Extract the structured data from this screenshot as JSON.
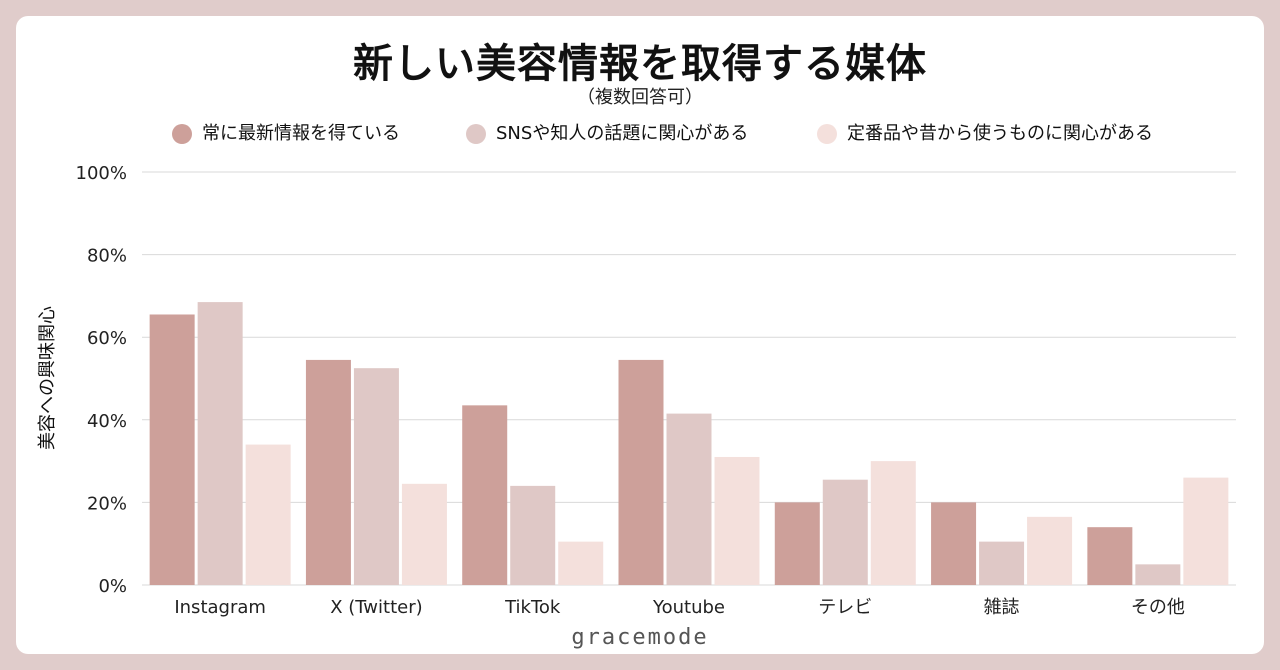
{
  "chart_data": {
    "type": "bar",
    "title": "新しい美容情報を取得する媒体",
    "subtitle": "（複数回答可）",
    "ylabel": "美容への興味関心",
    "xlabel": "",
    "ylim": [
      0,
      100
    ],
    "y_ticks": [
      "0%",
      "20%",
      "40%",
      "60%",
      "80%",
      "100%"
    ],
    "grid": true,
    "legend_position": "top",
    "categories": [
      "Instagram",
      "X (Twitter)",
      "TikTok",
      "Youtube",
      "テレビ",
      "雑誌",
      "その他"
    ],
    "series": [
      {
        "name": "常に最新情報を得ている",
        "color": "#cda09a",
        "values": [
          65.5,
          54.5,
          43.5,
          54.5,
          20.0,
          20.0,
          14.0
        ]
      },
      {
        "name": "SNSや知人の話題に関心がある",
        "color": "#dfc8c6",
        "values": [
          68.5,
          52.5,
          24.0,
          41.5,
          25.5,
          10.5,
          5.0
        ]
      },
      {
        "name": "定番品や昔から使うものに関心がある",
        "color": "#f4e0dc",
        "values": [
          34.0,
          24.5,
          10.5,
          31.0,
          30.0,
          16.5,
          26.0
        ]
      }
    ]
  },
  "branding": {
    "footer_text": "gracemode"
  },
  "colors": {
    "page_background": "#e0cccb",
    "card_background": "#ffffff",
    "grid": "#d9d9d9"
  }
}
